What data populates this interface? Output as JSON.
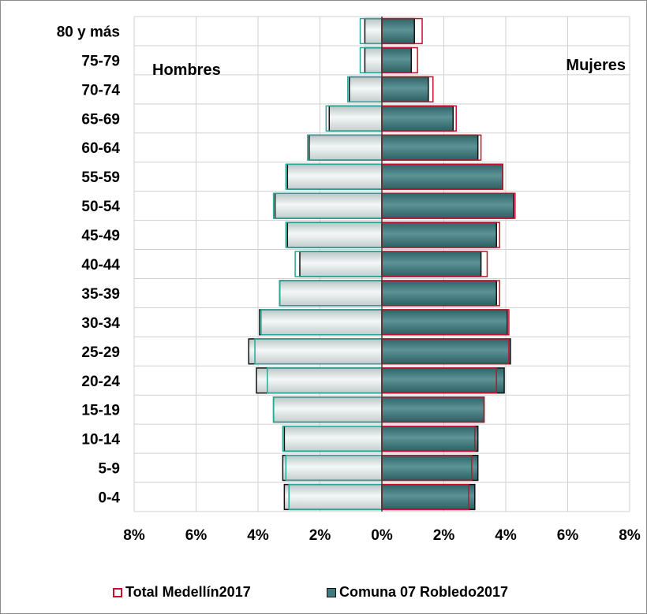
{
  "colors": {
    "total_outline_women": "#c8102e",
    "total_outline_men": "#2aa69a",
    "women_fill": "#3e7a7e",
    "men_fill": "#dde4e4",
    "bar_stroke": "#111111",
    "grid": "#d0d0d0"
  },
  "chart_data": {
    "type": "bar",
    "orientation": "horizontal",
    "layout": "population-pyramid",
    "categories": [
      "0-4",
      "5-9",
      "10-14",
      "15-19",
      "20-24",
      "25-29",
      "30-34",
      "35-39",
      "40-44",
      "45-49",
      "50-54",
      "55-59",
      "60-64",
      "65-69",
      "70-74",
      "75-79",
      "80 y más"
    ],
    "left_label": "Hombres",
    "right_label": "Mujeres",
    "xlim": [
      -8,
      8
    ],
    "x_ticks": [
      -8,
      -6,
      -4,
      -2,
      0,
      2,
      4,
      6,
      8
    ],
    "x_tick_labels": [
      "8%",
      "6%",
      "4%",
      "2%",
      "0%",
      "2%",
      "4%",
      "6%",
      "8%"
    ],
    "x_unit": "%",
    "grid": true,
    "legend_position": "bottom",
    "series": [
      {
        "name": "Total Medellín2017",
        "style": "outline",
        "hombres": [
          3.0,
          3.1,
          3.2,
          3.5,
          3.7,
          4.1,
          3.9,
          3.3,
          2.8,
          3.1,
          3.5,
          3.1,
          2.4,
          1.8,
          1.1,
          0.7,
          0.7
        ],
        "mujeres": [
          2.8,
          2.9,
          3.0,
          3.3,
          3.7,
          4.1,
          4.1,
          3.8,
          3.4,
          3.8,
          4.3,
          3.9,
          3.2,
          2.4,
          1.65,
          1.15,
          1.3
        ]
      },
      {
        "name": "Comuna 07 Robledo2017",
        "style": "filled",
        "hombres": [
          3.15,
          3.2,
          3.15,
          3.5,
          4.05,
          4.3,
          3.95,
          3.3,
          2.65,
          3.05,
          3.45,
          3.05,
          2.35,
          1.7,
          1.05,
          0.55,
          0.55
        ],
        "mujeres": [
          3.0,
          3.1,
          3.1,
          3.3,
          3.95,
          4.15,
          4.05,
          3.7,
          3.2,
          3.7,
          4.25,
          3.9,
          3.1,
          2.3,
          1.5,
          0.95,
          1.05
        ]
      }
    ]
  }
}
